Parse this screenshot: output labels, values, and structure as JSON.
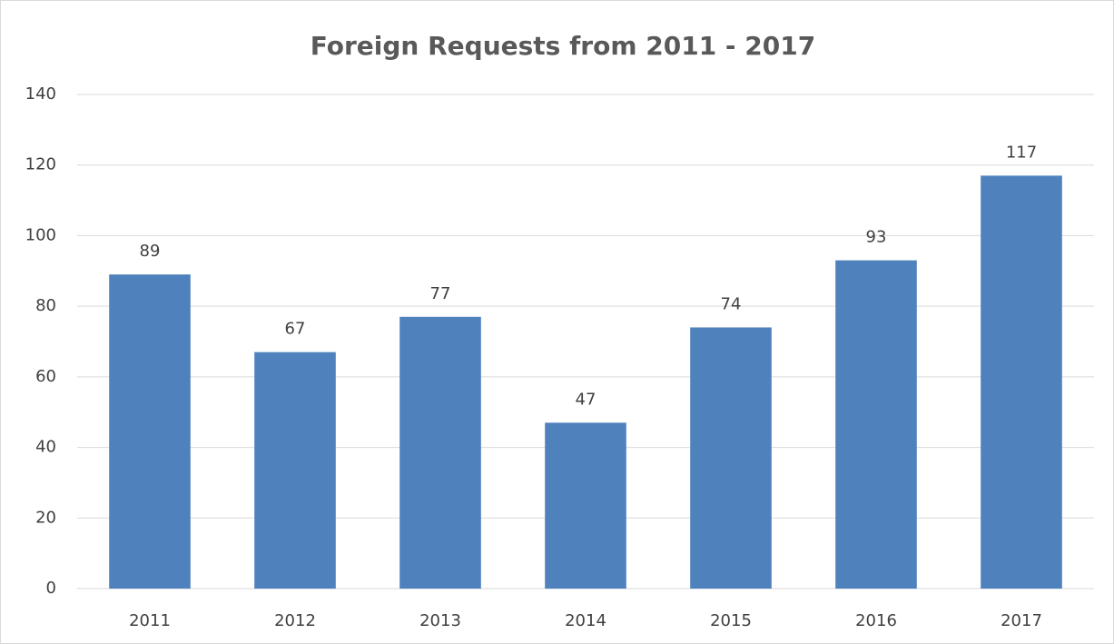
{
  "chart_data": {
    "type": "bar",
    "title": "Foreign Requests from 2011 - 2017",
    "categories": [
      "2011",
      "2012",
      "2013",
      "2014",
      "2015",
      "2016",
      "2017"
    ],
    "values": [
      89,
      67,
      77,
      47,
      74,
      93,
      117
    ],
    "color": "#4f81bd",
    "ylim": [
      0,
      140
    ],
    "yticks": [
      0,
      20,
      40,
      60,
      80,
      100,
      120,
      140
    ],
    "grid": true
  }
}
